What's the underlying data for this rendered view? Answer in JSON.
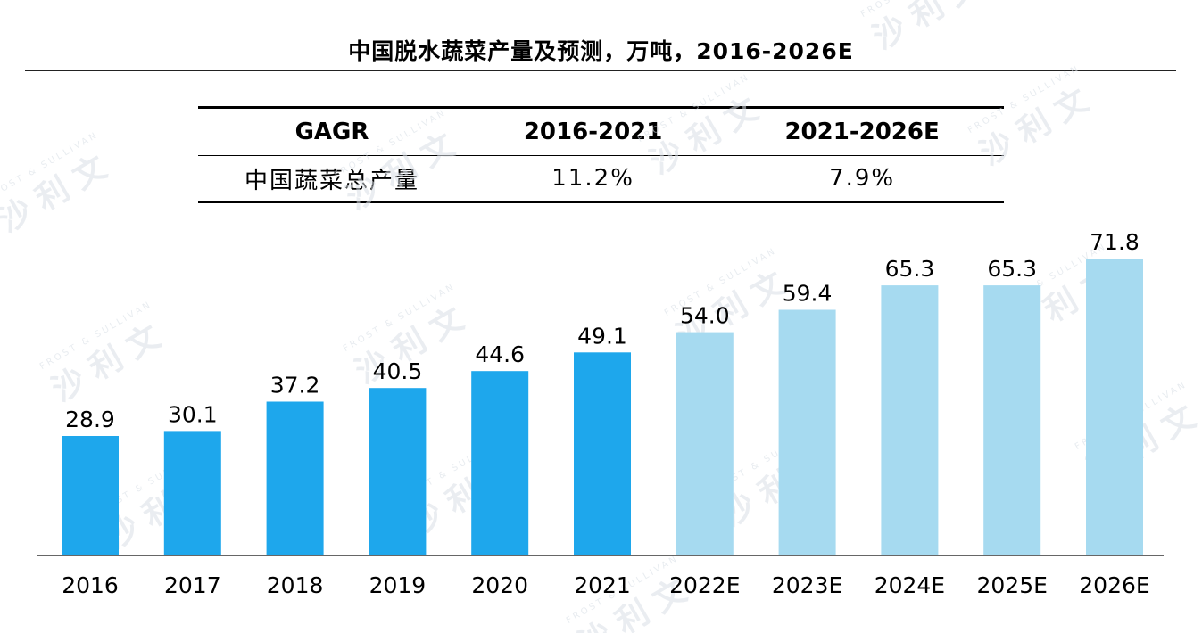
{
  "title": "中国脱水蔬菜产量及预测，万吨，2016-2026E",
  "cagr_table": {
    "headers": [
      "GAGR",
      "2016-2021",
      "2021-2026E"
    ],
    "rows": [
      {
        "label": "中国蔬菜总产量",
        "values": [
          "11.2%",
          "7.9%"
        ]
      }
    ]
  },
  "watermark": {
    "cn": "沙利文",
    "en": "FROST & SULLIVAN"
  },
  "colors": {
    "actual": "#1ea7ec",
    "forecast": "#a6daf0",
    "axis": "#333333"
  },
  "chart_data": {
    "type": "bar",
    "title": "中国脱水蔬菜产量及预测，万吨，2016-2026E",
    "categories": [
      "2016",
      "2017",
      "2018",
      "2019",
      "2020",
      "2021",
      "2022E",
      "2023E",
      "2024E",
      "2025E",
      "2026E"
    ],
    "values": [
      28.9,
      30.1,
      37.2,
      40.5,
      44.6,
      49.1,
      54.0,
      59.4,
      65.3,
      65.3,
      71.8
    ],
    "forecast_from_index": 6,
    "ylim": [
      0,
      71.8
    ],
    "grid": false,
    "data_labels": true
  }
}
